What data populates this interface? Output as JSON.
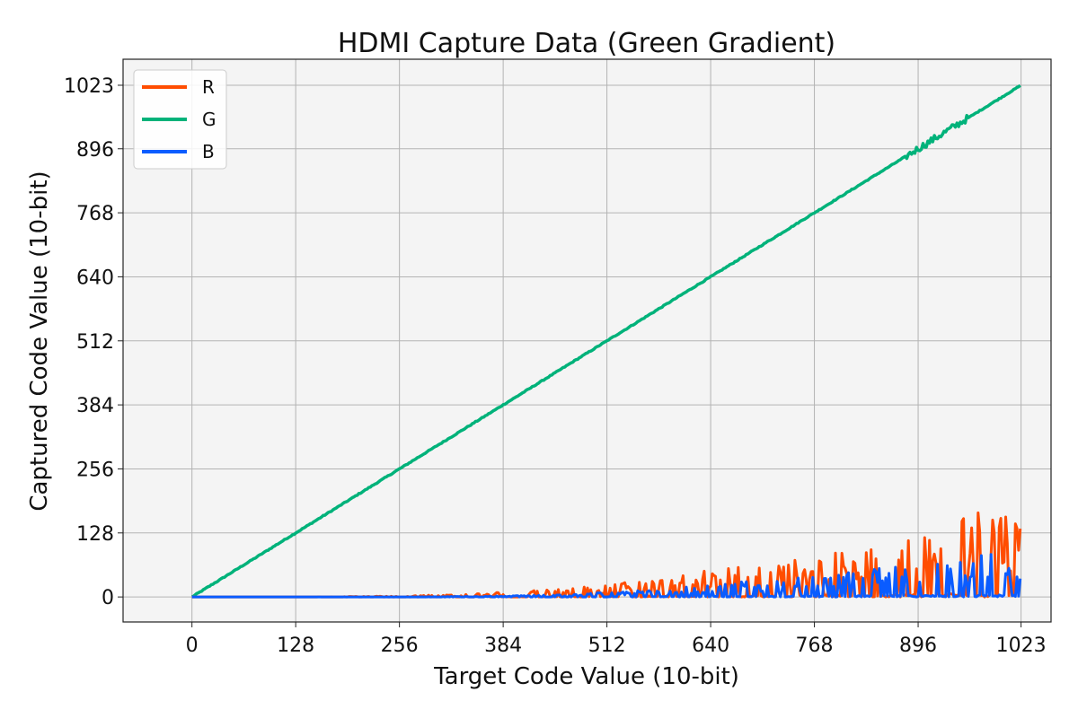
{
  "chart_data": {
    "type": "line",
    "title": "HDMI Capture Data (Green Gradient)",
    "xlabel": "Target Code Value (10-bit)",
    "ylabel": "Captured Code Value (10-bit)",
    "xlim": [
      -85,
      1060
    ],
    "ylim": [
      -50,
      1075
    ],
    "xticks": [
      "0",
      "128",
      "256",
      "384",
      "512",
      "640",
      "768",
      "896",
      "1023"
    ],
    "yticks": [
      "0",
      "128",
      "256",
      "384",
      "512",
      "640",
      "768",
      "896",
      "1023"
    ],
    "grid": true,
    "legend_position": "top-left",
    "background_color": "#f4f4f4",
    "series": [
      {
        "name": "R",
        "color": "#ff4d00",
        "x": [
          0,
          128,
          256,
          320,
          384,
          448,
          512,
          576,
          640,
          704,
          768,
          832,
          896,
          960,
          990,
          1023
        ],
        "y": [
          0,
          0,
          2,
          5,
          10,
          15,
          25,
          40,
          55,
          70,
          80,
          100,
          125,
          175,
          185,
          165
        ]
      },
      {
        "name": "G",
        "color": "#00b27a",
        "x": [
          0,
          128,
          256,
          384,
          512,
          640,
          768,
          896,
          1023
        ],
        "y": [
          0,
          128,
          256,
          384,
          512,
          640,
          768,
          896,
          1023
        ]
      },
      {
        "name": "B",
        "color": "#0a5cff",
        "x": [
          0,
          128,
          256,
          384,
          448,
          512,
          576,
          640,
          704,
          768,
          832,
          896,
          960,
          990,
          1023
        ],
        "y": [
          0,
          0,
          0,
          2,
          5,
          10,
          15,
          25,
          35,
          40,
          55,
          65,
          85,
          100,
          60
        ]
      }
    ]
  }
}
